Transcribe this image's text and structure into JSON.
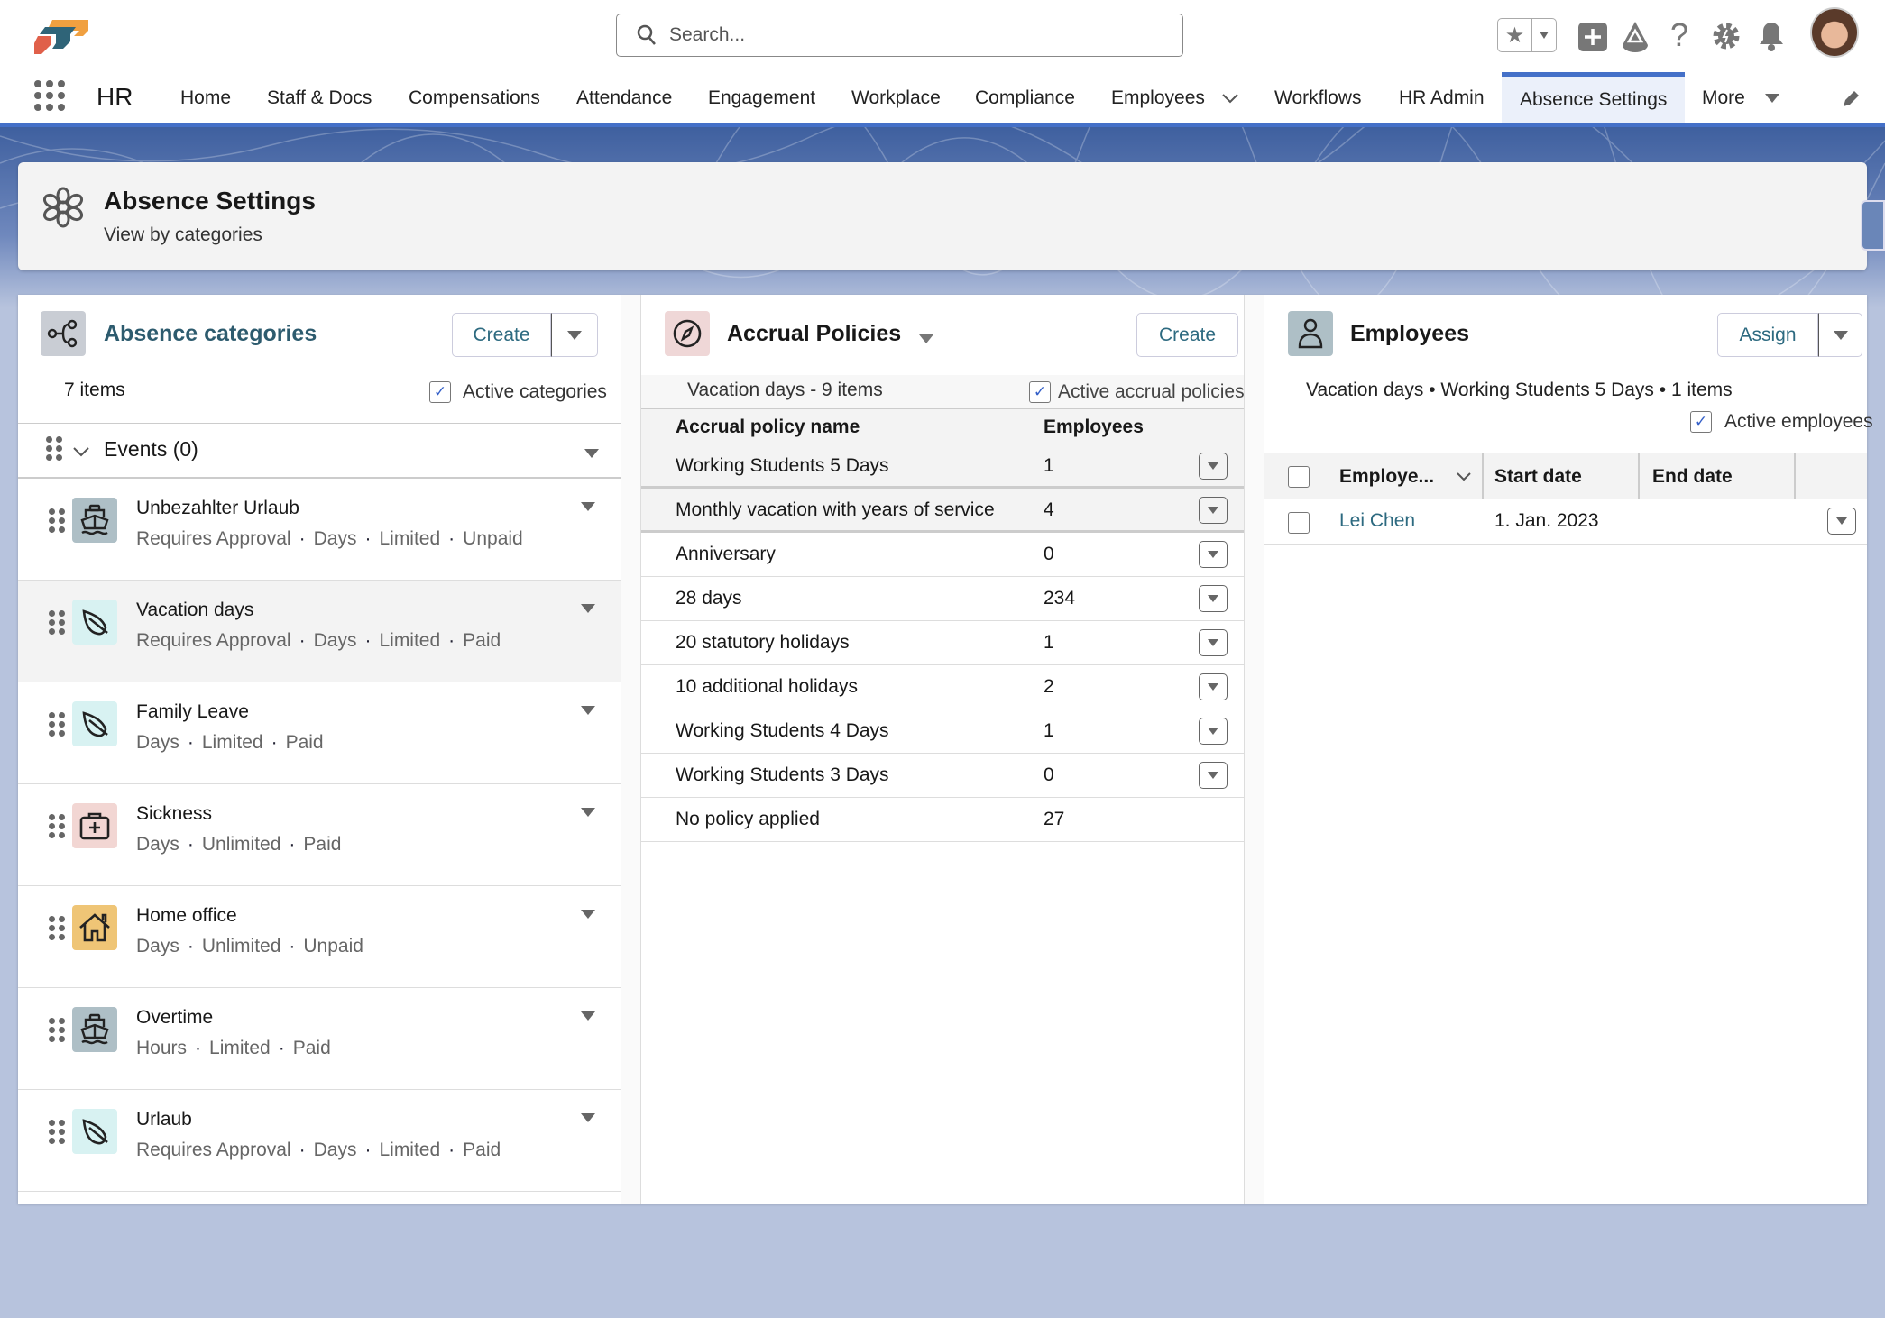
{
  "topbar": {
    "search_placeholder": "Search...",
    "icons": [
      "star-icon",
      "add-icon",
      "trailhead-icon",
      "help-icon",
      "setup-gear-icon",
      "notification-bell-icon",
      "user-avatar"
    ]
  },
  "nav": {
    "app_name": "HR",
    "items": [
      "Home",
      "Staff & Docs",
      "Compensations",
      "Attendance",
      "Engagement",
      "Workplace",
      "Compliance",
      "Employees",
      "Workflows",
      "HR Admin",
      "Absence Settings",
      "More"
    ],
    "active": "Absence Settings",
    "accent": "#4470c8"
  },
  "header": {
    "title": "Absence Settings",
    "subtitle": "View by categories"
  },
  "categories": {
    "title": "Absence categories",
    "create": "Create",
    "count": "7 items",
    "filter_label": "Active categories",
    "filter_checked": true,
    "group": "Events (0)",
    "items": [
      {
        "name": "Unbezahlter Urlaub",
        "tags": [
          "Requires Approval",
          "Days",
          "Limited",
          "Unpaid"
        ],
        "icon": "ship-icon",
        "color": "#aebfc6"
      },
      {
        "name": "Vacation days",
        "tags": [
          "Requires Approval",
          "Days",
          "Limited",
          "Paid"
        ],
        "icon": "leaf-icon",
        "color": "#d8f2f2",
        "selected": true
      },
      {
        "name": "Family Leave",
        "tags": [
          "Days",
          "Limited",
          "Paid"
        ],
        "icon": "leaf-icon",
        "color": "#d8f2f2"
      },
      {
        "name": "Sickness",
        "tags": [
          "Days",
          "Unlimited",
          "Paid"
        ],
        "icon": "first-aid-kit-icon",
        "color": "#f2d6d3"
      },
      {
        "name": "Home office",
        "tags": [
          "Days",
          "Unlimited",
          "Unpaid"
        ],
        "icon": "home-icon",
        "color": "#efc576"
      },
      {
        "name": "Overtime",
        "tags": [
          "Hours",
          "Limited",
          "Paid"
        ],
        "icon": "ship-icon",
        "color": "#aebfc6"
      },
      {
        "name": "Urlaub",
        "tags": [
          "Requires Approval",
          "Days",
          "Limited",
          "Paid"
        ],
        "icon": "leaf-icon",
        "color": "#d8f2f2"
      }
    ]
  },
  "accrual": {
    "title": "Accrual Policies",
    "create": "Create",
    "context": "Vacation days - 9 items",
    "filter_label": "Active accrual policies",
    "filter_checked": true,
    "columns": [
      "Accrual policy name",
      "Employees"
    ],
    "rows": [
      {
        "name": "Working Students 5 Days",
        "employees": "1",
        "selected": true
      },
      {
        "name": "Monthly vacation with years of service",
        "employees": "4",
        "selected": true
      },
      {
        "name": "Anniversary",
        "employees": "0"
      },
      {
        "name": "28 days",
        "employees": "234"
      },
      {
        "name": "20 statutory holidays",
        "employees": "1"
      },
      {
        "name": "10 additional holidays",
        "employees": "2"
      },
      {
        "name": "Working Students 4 Days",
        "employees": "1"
      },
      {
        "name": "Working Students 3 Days",
        "employees": "0"
      },
      {
        "name": "No policy applied",
        "employees": "27",
        "no_menu": true
      }
    ]
  },
  "employees": {
    "title": "Employees",
    "assign": "Assign",
    "context": "Vacation days • Working Students 5 Days • 1 items",
    "filter_label": "Active employees",
    "filter_checked": true,
    "columns": [
      "Employe...",
      "Start date",
      "End date"
    ],
    "rows": [
      {
        "name": "Lei Chen",
        "start": "1. Jan. 2023",
        "end": ""
      }
    ]
  }
}
